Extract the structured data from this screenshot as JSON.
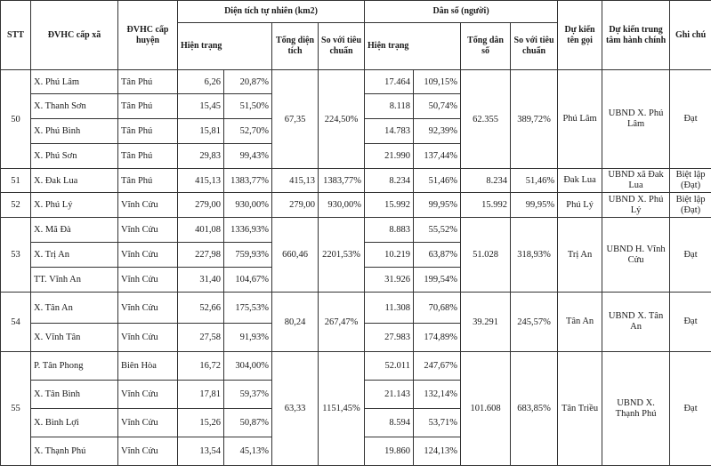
{
  "headers": {
    "stt": "STT",
    "commune": "ĐVHC cấp xã",
    "district": "ĐVHC cấp huyện",
    "area_group": "Diện tích tự nhiên (km2)",
    "population_group": "Dân số (người)",
    "current": "Hiện trạng",
    "total_area": "Tổng diện tích",
    "vs_standard": "So với tiêu chuẩn",
    "total_population": "Tổng dân số",
    "expected_name": "Dự kiến tên gọi",
    "expected_center": "Dự kiến trung tâm hành chính",
    "notes": "Ghi chú"
  },
  "groups": [
    {
      "stt": "50",
      "total_area": "67,35",
      "area_ratio": "224,50%",
      "total_population": "62.355",
      "population_ratio": "389,72%",
      "expected_name": "Phú Lâm",
      "expected_center": "UBND X. Phú Lâm",
      "note": "Đạt",
      "rows": [
        {
          "commune": "X. Phú Lâm",
          "district": "Tân Phú",
          "area": "6,26",
          "area_pct": "20,87%",
          "pop": "17.464",
          "pop_pct": "109,15%"
        },
        {
          "commune": "X. Thanh Sơn",
          "district": "Tân Phú",
          "area": "15,45",
          "area_pct": "51,50%",
          "pop": "8.118",
          "pop_pct": "50,74%"
        },
        {
          "commune": "X. Phú Bình",
          "district": "Tân Phú",
          "area": "15,81",
          "area_pct": "52,70%",
          "pop": "14.783",
          "pop_pct": "92,39%"
        },
        {
          "commune": "X. Phú Sơn",
          "district": "Tân Phú",
          "area": "29,83",
          "area_pct": "99,43%",
          "pop": "21.990",
          "pop_pct": "137,44%"
        }
      ]
    },
    {
      "stt": "51",
      "total_area": "415,13",
      "area_ratio": "1383,77%",
      "total_population": "8.234",
      "population_ratio": "51,46%",
      "expected_name": "Đak Lua",
      "expected_center": "UBND xã Đak Lua",
      "note": "Biệt lập (Đạt)",
      "rows": [
        {
          "commune": "X. Đak Lua",
          "district": "Tân Phú",
          "area": "415,13",
          "area_pct": "1383,77%",
          "pop": "8.234",
          "pop_pct": "51,46%"
        }
      ]
    },
    {
      "stt": "52",
      "total_area": "279,00",
      "area_ratio": "930,00%",
      "total_population": "15.992",
      "population_ratio": "99,95%",
      "expected_name": "Phú Lý",
      "expected_center": "UBND X. Phú Lý",
      "note": "Biệt lập (Đạt)",
      "rows": [
        {
          "commune": "X. Phú Lý",
          "district": "Vĩnh Cửu",
          "area": "279,00",
          "area_pct": "930,00%",
          "pop": "15.992",
          "pop_pct": "99,95%"
        }
      ]
    },
    {
      "stt": "53",
      "total_area": "660,46",
      "area_ratio": "2201,53%",
      "total_population": "51.028",
      "population_ratio": "318,93%",
      "expected_name": "Trị An",
      "expected_center": "UBND H. Vĩnh Cửu",
      "note": "Đạt",
      "rows": [
        {
          "commune": "X. Mã Đà",
          "district": "Vĩnh Cửu",
          "area": "401,08",
          "area_pct": "1336,93%",
          "pop": "8.883",
          "pop_pct": "55,52%"
        },
        {
          "commune": "X. Trị An",
          "district": "Vĩnh Cửu",
          "area": "227,98",
          "area_pct": "759,93%",
          "pop": "10.219",
          "pop_pct": "63,87%"
        },
        {
          "commune": "TT. Vĩnh An",
          "district": "Vĩnh Cửu",
          "area": "31,40",
          "area_pct": "104,67%",
          "pop": "31.926",
          "pop_pct": "199,54%"
        }
      ]
    },
    {
      "stt": "54",
      "total_area": "80,24",
      "area_ratio": "267,47%",
      "total_population": "39.291",
      "population_ratio": "245,57%",
      "expected_name": "Tân An",
      "expected_center": "UBND X. Tân An",
      "note": "Đạt",
      "rows": [
        {
          "commune": "X. Tân An",
          "district": "Vĩnh Cửu",
          "area": "52,66",
          "area_pct": "175,53%",
          "pop": "11.308",
          "pop_pct": "70,68%"
        },
        {
          "commune": "X. Vĩnh Tân",
          "district": "Vĩnh Cửu",
          "area": "27,58",
          "area_pct": "91,93%",
          "pop": "27.983",
          "pop_pct": "174,89%"
        }
      ]
    },
    {
      "stt": "55",
      "total_area": "63,33",
      "area_ratio": "1151,45%",
      "total_population": "101.608",
      "population_ratio": "683,85%",
      "expected_name": "Tân Triều",
      "expected_center": "UBND X. Thạnh Phú",
      "note": "Đạt",
      "rows": [
        {
          "commune": "P. Tân Phong",
          "district": "Biên Hòa",
          "area": "16,72",
          "area_pct": "304,00%",
          "pop": "52.011",
          "pop_pct": "247,67%"
        },
        {
          "commune": "X. Tân Bình",
          "district": "Vĩnh Cửu",
          "area": "17,81",
          "area_pct": "59,37%",
          "pop": "21.143",
          "pop_pct": "132,14%"
        },
        {
          "commune": "X. Bình Lợi",
          "district": "Vĩnh Cửu",
          "area": "15,26",
          "area_pct": "50,87%",
          "pop": "8.594",
          "pop_pct": "53,71%"
        },
        {
          "commune": "X. Thạnh Phú",
          "district": "Vĩnh Cửu",
          "area": "13,54",
          "area_pct": "45,13%",
          "pop": "19.860",
          "pop_pct": "124,13%"
        }
      ]
    }
  ]
}
